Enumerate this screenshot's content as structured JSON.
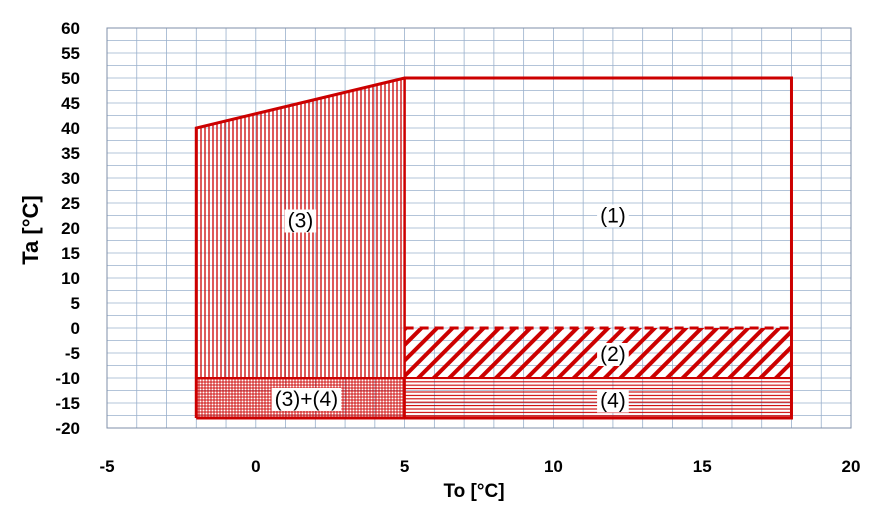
{
  "chart_data": {
    "type": "area",
    "title": "",
    "xlabel": "To [°C]",
    "ylabel": "Ta [°C]",
    "xlim": [
      -5,
      20
    ],
    "ylim": [
      -20,
      60
    ],
    "x_ticks": [
      -5,
      0,
      5,
      10,
      15,
      20
    ],
    "y_ticks": [
      60,
      55,
      50,
      45,
      40,
      35,
      30,
      25,
      20,
      15,
      10,
      5,
      0,
      -5,
      -10,
      -15,
      -20
    ],
    "x_minor_step": 1,
    "y_minor_step": 2.5,
    "grid": true,
    "colors": {
      "outline": "#cc0000",
      "hatch": "#cc0000",
      "grid": "#9ab0cc",
      "label_bg": "#ffffff"
    },
    "regions": [
      {
        "label": "(1)",
        "polygon": [
          [
            5,
            0
          ],
          [
            18,
            0
          ],
          [
            18,
            50
          ],
          [
            5,
            50
          ]
        ],
        "pattern": "none",
        "label_pos": [
          12,
          22.5
        ]
      },
      {
        "label": "(2)",
        "polygon": [
          [
            5,
            -10
          ],
          [
            18,
            -10
          ],
          [
            18,
            0
          ],
          [
            5,
            0
          ]
        ],
        "pattern": "diagonal",
        "label_pos": [
          12,
          -5.2
        ],
        "top_edge": "dashed"
      },
      {
        "label": "(3)",
        "polygon": [
          [
            -2,
            -10
          ],
          [
            5,
            -10
          ],
          [
            5,
            50
          ],
          [
            -2,
            40
          ]
        ],
        "pattern": "vertical",
        "label_pos": [
          1.5,
          21.5
        ]
      },
      {
        "label": "(4)",
        "polygon": [
          [
            5,
            -18
          ],
          [
            18,
            -18
          ],
          [
            18,
            -10
          ],
          [
            5,
            -10
          ]
        ],
        "pattern": "horizontal",
        "label_pos": [
          12,
          -14.5
        ]
      },
      {
        "label": "(3)+(4)",
        "polygon": [
          [
            -2,
            -18
          ],
          [
            5,
            -18
          ],
          [
            5,
            -10
          ],
          [
            -2,
            -10
          ]
        ],
        "pattern": "crosshatch",
        "label_pos": [
          1.7,
          -14.2
        ]
      }
    ],
    "outline": [
      [
        -2,
        -18
      ],
      [
        18,
        -18
      ],
      [
        18,
        50
      ],
      [
        5,
        50
      ],
      [
        -2,
        40
      ],
      [
        -2,
        -18
      ]
    ]
  }
}
